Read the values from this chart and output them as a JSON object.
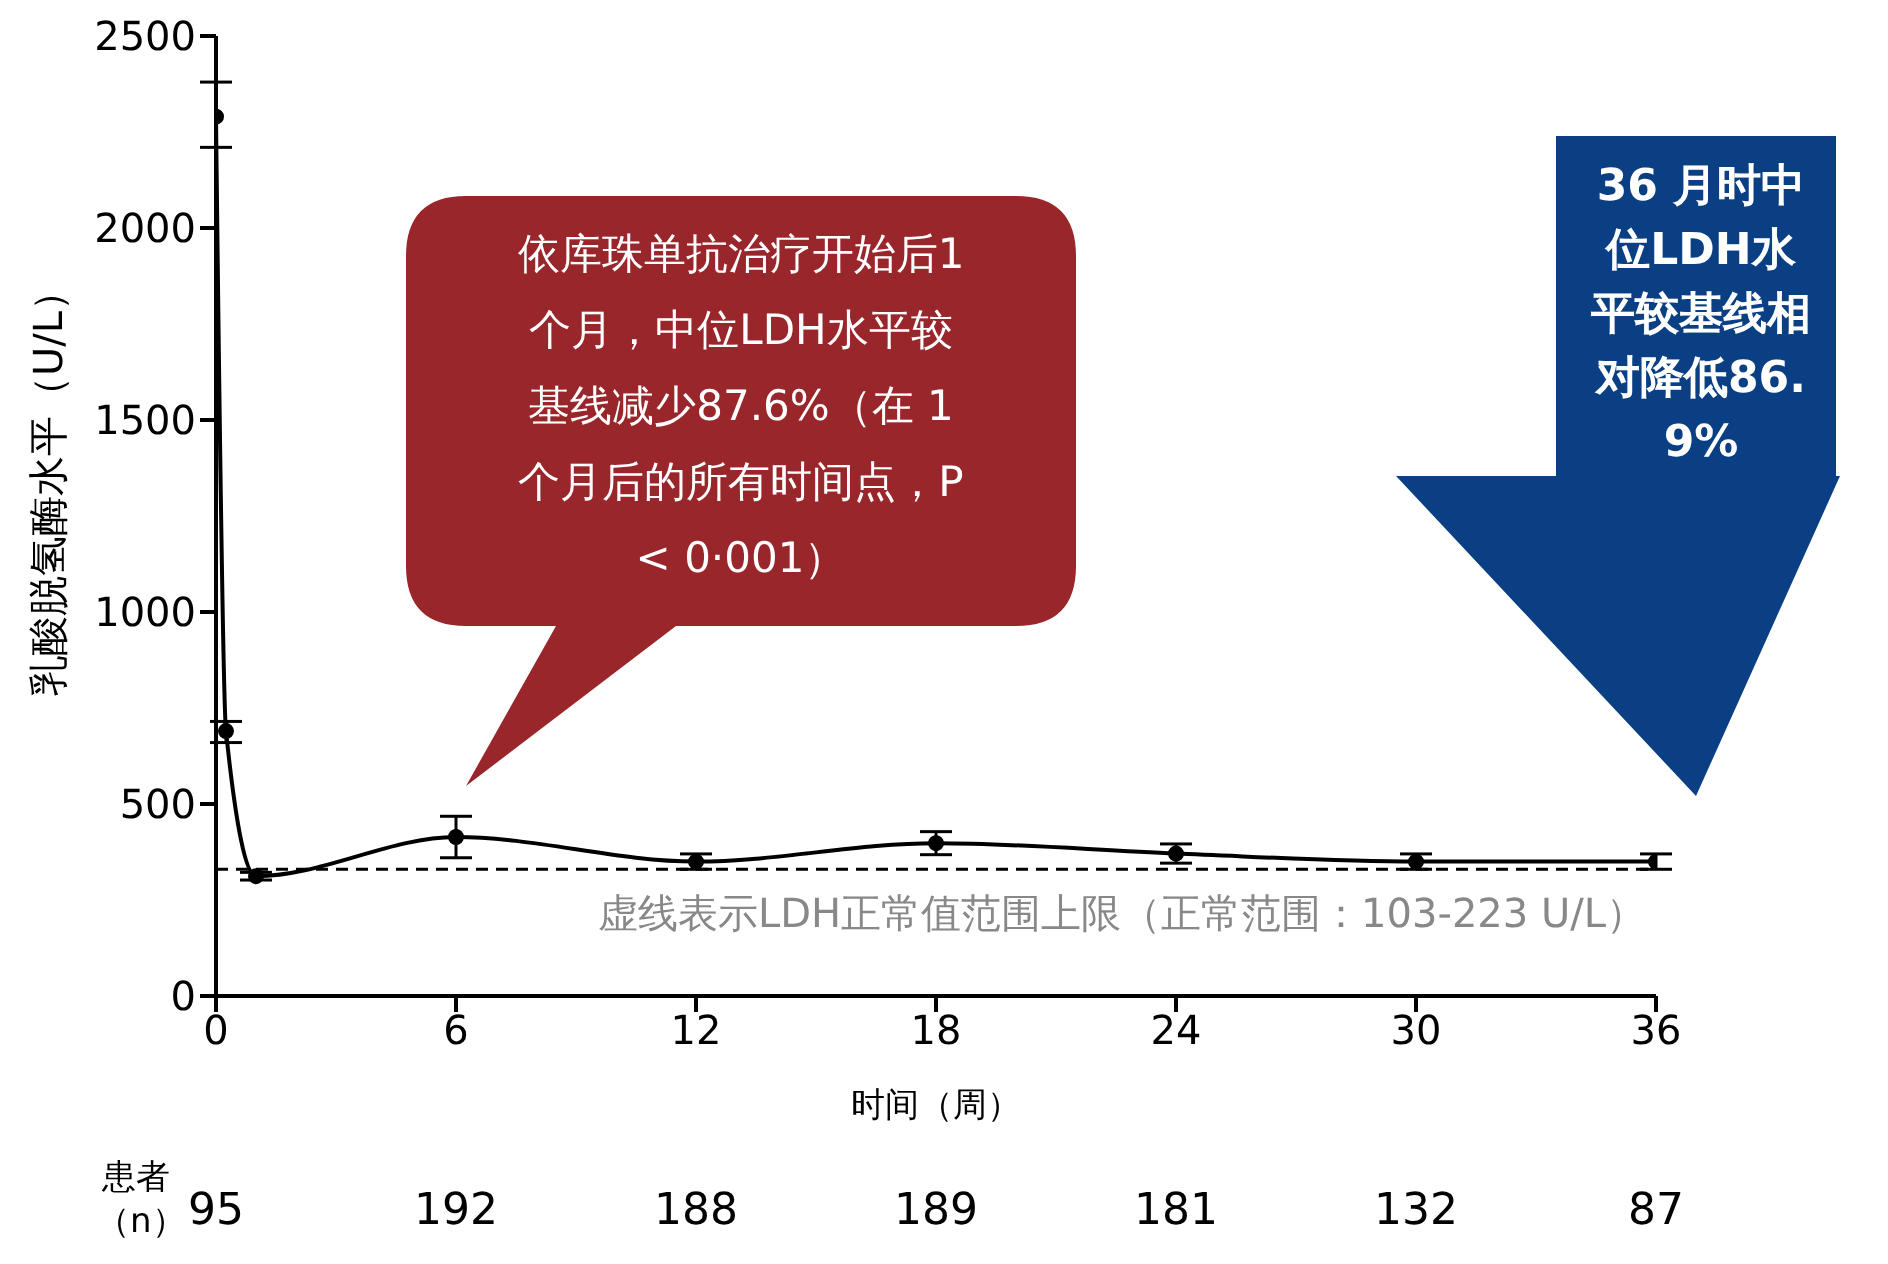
{
  "chart_data": {
    "type": "line",
    "ylabel": "乳酸脱氢酶水平（U/L）",
    "xlabel": "时间（周）",
    "x": [
      0,
      0.25,
      1,
      6,
      12,
      18,
      24,
      30,
      36
    ],
    "series": [
      {
        "color": "#000000",
        "values": [
          2290,
          690,
          312,
          414,
          350,
          398,
          371,
          350,
          350
        ],
        "errors": [
          [
            2210,
            2380
          ],
          [
            660,
            715
          ],
          10,
          [
            360,
            468
          ],
          20,
          30,
          25,
          20,
          20
        ]
      }
    ],
    "xlim": [
      0,
      36
    ],
    "xticks": [
      0,
      6,
      12,
      18,
      24,
      30,
      36
    ],
    "ylim": [
      0,
      2500
    ],
    "yticks": [
      0,
      500,
      1000,
      1500,
      2000,
      2500
    ],
    "grid": false,
    "legend": false,
    "marker": "circle",
    "line_style": "solid",
    "ref_lines": [
      {
        "axis": "y",
        "value": 330,
        "label": "虚线表示LDH正常值范围上限（正常范围：103-223 U/L）",
        "color": "#000000",
        "line_style": "dashed"
      }
    ],
    "annotations": [
      "依库珠单抗治疗开始后1 个月，中位LDH水平较基线减少87.6%（在 1个月后的所有时间点，P < 0·001）",
      "36 月时中位LDH水平较基线相对降低86.9%",
      "患者（n）",
      "95",
      "192",
      "188",
      "189",
      "181",
      "132",
      "87"
    ]
  }
}
